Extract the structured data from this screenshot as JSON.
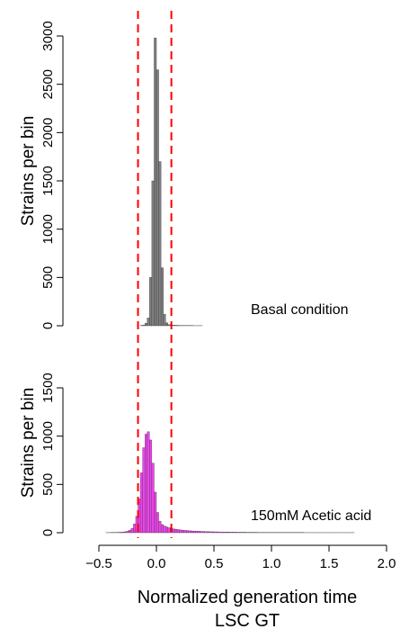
{
  "chart_data": [
    {
      "type": "bar",
      "label": "Basal condition",
      "ylabel": "Strains per bin",
      "xlim": [
        -0.5,
        2.0
      ],
      "ylim": [
        0,
        3000
      ],
      "yticks": [
        0,
        500,
        1000,
        1500,
        2000,
        2500,
        3000
      ],
      "bin_width": 0.02,
      "bin_start": -0.14,
      "color": "#808080",
      "values": [
        3,
        8,
        25,
        80,
        500,
        1500,
        2980,
        2650,
        1700,
        600,
        120,
        30,
        12,
        8,
        6,
        5,
        4,
        3,
        3,
        2,
        2,
        2,
        2,
        1,
        1,
        1,
        1
      ]
    },
    {
      "type": "bar",
      "label": "150mM Acetic acid",
      "ylabel": "Strains per bin",
      "xlim": [
        -0.5,
        2.0
      ],
      "ylim": [
        0,
        1500
      ],
      "yticks": [
        0,
        500,
        1000,
        1500
      ],
      "bin_width": 0.02,
      "bin_start": -0.44,
      "color": "#ee44ee",
      "values": [
        1,
        1,
        2,
        2,
        3,
        4,
        5,
        7,
        10,
        15,
        25,
        45,
        90,
        170,
        350,
        620,
        880,
        1020,
        1045,
        960,
        720,
        420,
        210,
        120,
        85,
        70,
        60,
        52,
        46,
        40,
        36,
        32,
        29,
        26,
        24,
        22,
        20,
        18,
        17,
        16,
        15,
        14,
        13,
        12,
        11,
        10,
        10,
        9,
        9,
        8,
        8,
        7,
        7,
        7,
        6,
        6,
        6,
        5,
        5,
        5,
        5,
        4,
        4,
        4,
        4,
        4,
        3,
        3,
        3,
        3,
        3,
        3,
        3,
        2,
        2,
        2,
        2,
        2,
        2,
        2,
        2,
        2,
        2,
        2,
        2,
        2,
        1,
        1,
        1,
        1,
        1,
        1,
        1,
        1,
        1,
        1,
        1,
        1,
        1,
        1,
        1,
        1,
        1,
        1,
        1,
        1,
        1,
        1
      ]
    }
  ],
  "x_axis": {
    "ticks": [
      -0.5,
      0.0,
      0.5,
      1.0,
      1.5,
      2.0
    ],
    "tick_labels": [
      "−0.5",
      "0.0",
      "0.5",
      "1.0",
      "1.5",
      "2.0"
    ],
    "title_line1": "Normalized generation time",
    "title_line2": "LSC GT"
  },
  "cutoff_lines": {
    "x": [
      -0.16,
      0.13
    ],
    "color": "#ff0000"
  }
}
